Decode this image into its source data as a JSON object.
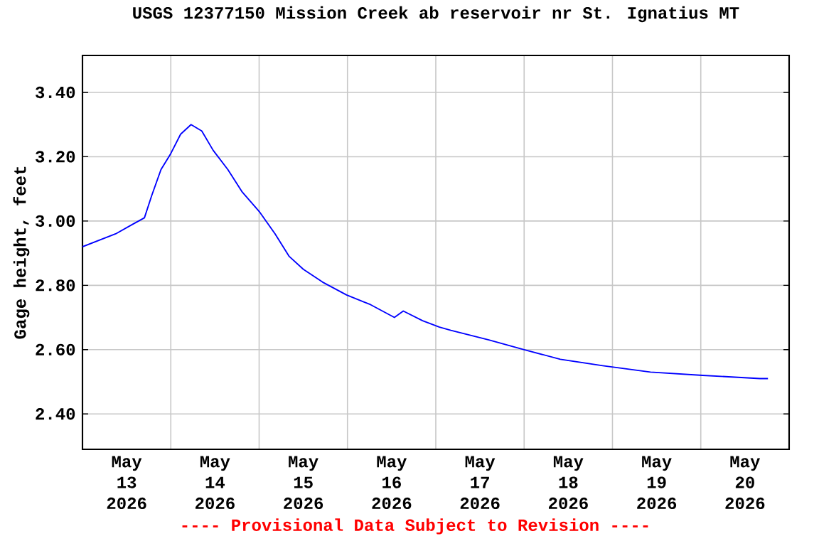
{
  "chart_data": {
    "type": "line",
    "title": "USGS 12377150 Mission Creek ab reservoir nr St. Ignatius MT",
    "ylabel": "Gage height, feet",
    "annotations": [
      "---- Provisional Data Subject to Revision ----"
    ],
    "xlim": [
      "2026-05-13T00:00",
      "2026-05-21T00:00"
    ],
    "xticks": [
      {
        "value": "2026-05-13T00:00",
        "label": null
      },
      {
        "value": "2026-05-14T00:00",
        "label": null
      },
      {
        "value": "2026-05-15T00:00",
        "label": null
      },
      {
        "value": "2026-05-16T00:00",
        "label": null
      },
      {
        "value": "2026-05-17T00:00",
        "label": null
      },
      {
        "value": "2026-05-18T00:00",
        "label": null
      },
      {
        "value": "2026-05-19T00:00",
        "label": null
      },
      {
        "value": "2026-05-20T00:00",
        "label": null
      },
      {
        "value": "2026-05-21T00:00",
        "label": null
      },
      {
        "value": "2026-05-13T12:00",
        "label": "May 13 2026"
      },
      {
        "value": "2026-05-14T12:00",
        "label": "May 14 2026"
      },
      {
        "value": "2026-05-15T12:00",
        "label": "May 15 2026"
      },
      {
        "value": "2026-05-16T12:00",
        "label": "May 16 2026"
      },
      {
        "value": "2026-05-17T12:00",
        "label": "May 17 2026"
      },
      {
        "value": "2026-05-18T12:00",
        "label": "May 18 2026"
      },
      {
        "value": "2026-05-19T12:00",
        "label": "May 19 2026"
      },
      {
        "value": "2026-05-20T12:00",
        "label": "May 20 2026"
      }
    ],
    "ylim": [
      2.29,
      3.515
    ],
    "yticks": [
      {
        "value": 2.4,
        "label": "2.40"
      },
      {
        "value": 2.6,
        "label": "2.60"
      },
      {
        "value": 2.8,
        "label": "2.80"
      },
      {
        "value": 3.0,
        "label": "3.00"
      },
      {
        "value": 3.2,
        "label": "3.20"
      },
      {
        "value": 3.4,
        "label": "3.40"
      }
    ],
    "grid": true,
    "marker": "none",
    "line_style": "solid",
    "series": [
      {
        "color": "#0000ff",
        "x": [
          "2026-05-13T00:00",
          "2026-05-13T04:30",
          "2026-05-13T09:00",
          "2026-05-13T13:40",
          "2026-05-13T16:50",
          "2026-05-13T18:50",
          "2026-05-13T21:20",
          "2026-05-14T00:00",
          "2026-05-14T02:40",
          "2026-05-14T05:30",
          "2026-05-14T08:25",
          "2026-05-14T11:30",
          "2026-05-14T15:30",
          "2026-05-14T19:25",
          "2026-05-15T00:00",
          "2026-05-15T04:20",
          "2026-05-15T08:10",
          "2026-05-15T12:00",
          "2026-05-15T17:15",
          "2026-05-15T23:45",
          "2026-05-16T06:15",
          "2026-05-16T12:45",
          "2026-05-16T15:10",
          "2026-05-16T20:25",
          "2026-05-17T01:00",
          "2026-05-17T04:05",
          "2026-05-17T14:25",
          "2026-05-18T00:00",
          "2026-05-18T09:50",
          "2026-05-18T21:20",
          "2026-05-19T10:20",
          "2026-05-20T00:30",
          "2026-05-20T16:05",
          "2026-05-20T18:15"
        ],
        "values": [
          2.92,
          2.94,
          2.96,
          2.99,
          3.01,
          3.08,
          3.16,
          3.21,
          3.27,
          3.3,
          3.28,
          3.22,
          3.16,
          3.09,
          3.03,
          2.96,
          2.89,
          2.85,
          2.81,
          2.77,
          2.74,
          2.7,
          2.72,
          2.69,
          2.67,
          2.66,
          2.63,
          2.6,
          2.57,
          2.55,
          2.53,
          2.52,
          2.51,
          2.51
        ]
      }
    ]
  }
}
